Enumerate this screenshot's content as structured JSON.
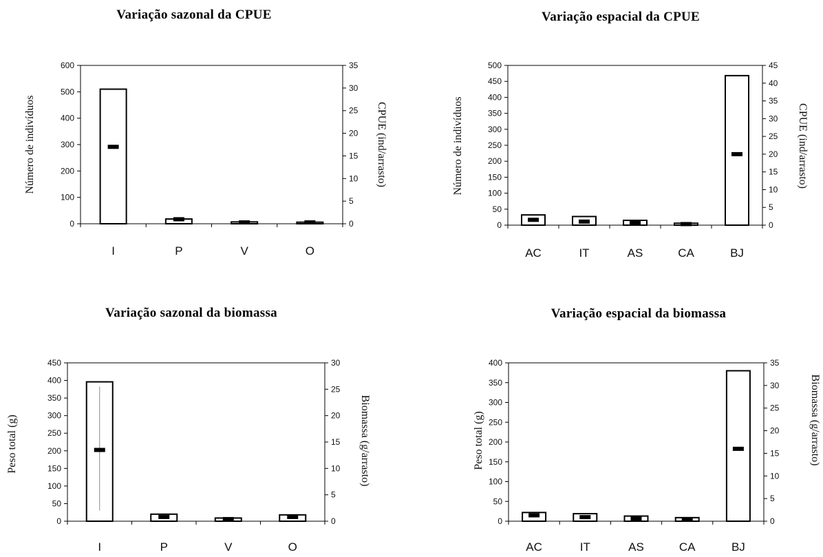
{
  "chart_data": [
    {
      "type": "bar",
      "title": "Variação sazonal da CPUE",
      "categories": [
        "I",
        "P",
        "V",
        "O"
      ],
      "ylabel": "Número de indivíduos",
      "y2label": "CPUE (ind/arrasto)",
      "ylim": [
        0,
        600
      ],
      "yticks": [
        0,
        100,
        200,
        300,
        400,
        500,
        600
      ],
      "y2lim": [
        0,
        35
      ],
      "y2ticks": [
        0,
        5,
        10,
        15,
        20,
        25,
        30,
        35
      ],
      "series": [
        {
          "axis": "left",
          "style": "bar",
          "values": [
            510,
            18,
            7,
            6
          ]
        },
        {
          "axis": "right",
          "style": "marker",
          "values": [
            17,
            1,
            0.3,
            0.3
          ]
        }
      ],
      "grid": false,
      "legend": "none"
    },
    {
      "type": "bar",
      "title": "Variação espacial da CPUE",
      "categories": [
        "AC",
        "IT",
        "AS",
        "CA",
        "BJ"
      ],
      "ylabel": "Número de indivíduos",
      "y2label": "CPUE (ind/arrasto)",
      "ylim": [
        0,
        500
      ],
      "yticks": [
        0,
        50,
        100,
        150,
        200,
        250,
        300,
        350,
        400,
        450,
        500
      ],
      "y2lim": [
        0,
        45
      ],
      "y2ticks": [
        0,
        5,
        10,
        15,
        20,
        25,
        30,
        35,
        40,
        45
      ],
      "series": [
        {
          "axis": "left",
          "style": "bar",
          "values": [
            32,
            27,
            15,
            6,
            468
          ]
        },
        {
          "axis": "right",
          "style": "marker",
          "values": [
            1.5,
            1.0,
            0.7,
            0.3,
            20
          ]
        }
      ],
      "grid": false,
      "legend": "none"
    },
    {
      "type": "bar",
      "title": "Variação sazonal da biomassa",
      "categories": [
        "I",
        "P",
        "V",
        "O"
      ],
      "ylabel": "Peso total (g)",
      "y2label": "Biomassa (g/arrasto)",
      "ylim": [
        0,
        450
      ],
      "yticks": [
        0,
        50,
        100,
        150,
        200,
        250,
        300,
        350,
        400,
        450
      ],
      "y2lim": [
        0,
        30
      ],
      "y2ticks": [
        0,
        5,
        10,
        15,
        20,
        25,
        30
      ],
      "series": [
        {
          "axis": "left",
          "style": "bar",
          "values": [
            396,
            20,
            9,
            18
          ]
        },
        {
          "axis": "right",
          "style": "marker",
          "values": [
            13.5,
            0.8,
            0.4,
            0.8
          ]
        },
        {
          "axis": "right",
          "style": "errorbar",
          "low": [
            2,
            null,
            null,
            null
          ],
          "high": [
            25.5,
            null,
            null,
            null
          ]
        }
      ],
      "grid": false,
      "legend": "none"
    },
    {
      "type": "bar",
      "title": "Variação espacial da biomassa",
      "categories": [
        "AC",
        "IT",
        "AS",
        "CA",
        "BJ"
      ],
      "ylabel": "Peso total (g)",
      "y2label": "Biomassa (g/arrasto)",
      "ylim": [
        0,
        400
      ],
      "yticks": [
        0,
        50,
        100,
        150,
        200,
        250,
        300,
        350,
        400
      ],
      "y2lim": [
        0,
        35
      ],
      "y2ticks": [
        0,
        5,
        10,
        15,
        20,
        25,
        30,
        35
      ],
      "series": [
        {
          "axis": "left",
          "style": "bar",
          "values": [
            22,
            19,
            13,
            9,
            380
          ]
        },
        {
          "axis": "right",
          "style": "marker",
          "values": [
            1.3,
            0.9,
            0.6,
            0.3,
            16
          ]
        }
      ],
      "grid": false,
      "legend": "none"
    }
  ]
}
